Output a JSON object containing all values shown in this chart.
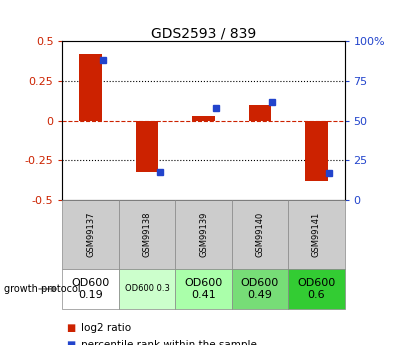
{
  "title": "GDS2593 / 839",
  "samples": [
    "GSM99137",
    "GSM99138",
    "GSM99139",
    "GSM99140",
    "GSM99141"
  ],
  "log2_ratio": [
    0.42,
    -0.32,
    0.03,
    0.1,
    -0.38
  ],
  "percentile_rank": [
    88,
    18,
    58,
    62,
    17
  ],
  "ylim_left": [
    -0.5,
    0.5
  ],
  "ylim_right": [
    0,
    100
  ],
  "yticks_left": [
    -0.5,
    -0.25,
    0.0,
    0.25,
    0.5
  ],
  "yticks_right": [
    0,
    25,
    50,
    75,
    100
  ],
  "bar_color": "#cc2200",
  "dot_color": "#2244cc",
  "background_color": "#ffffff",
  "zero_line_color": "#cc2200",
  "protocol_labels": [
    "OD600\n0.19",
    "OD600 0.3",
    "OD600\n0.41",
    "OD600\n0.49",
    "OD600\n0.6"
  ],
  "protocol_colors": [
    "#ffffff",
    "#ccffcc",
    "#aaffaa",
    "#77dd77",
    "#33cc33"
  ],
  "protocol_fontsizes": [
    8,
    6,
    8,
    8,
    8
  ],
  "legend_red": "log2 ratio",
  "legend_blue": "percentile rank within the sample",
  "growth_protocol_label": "growth protocol"
}
